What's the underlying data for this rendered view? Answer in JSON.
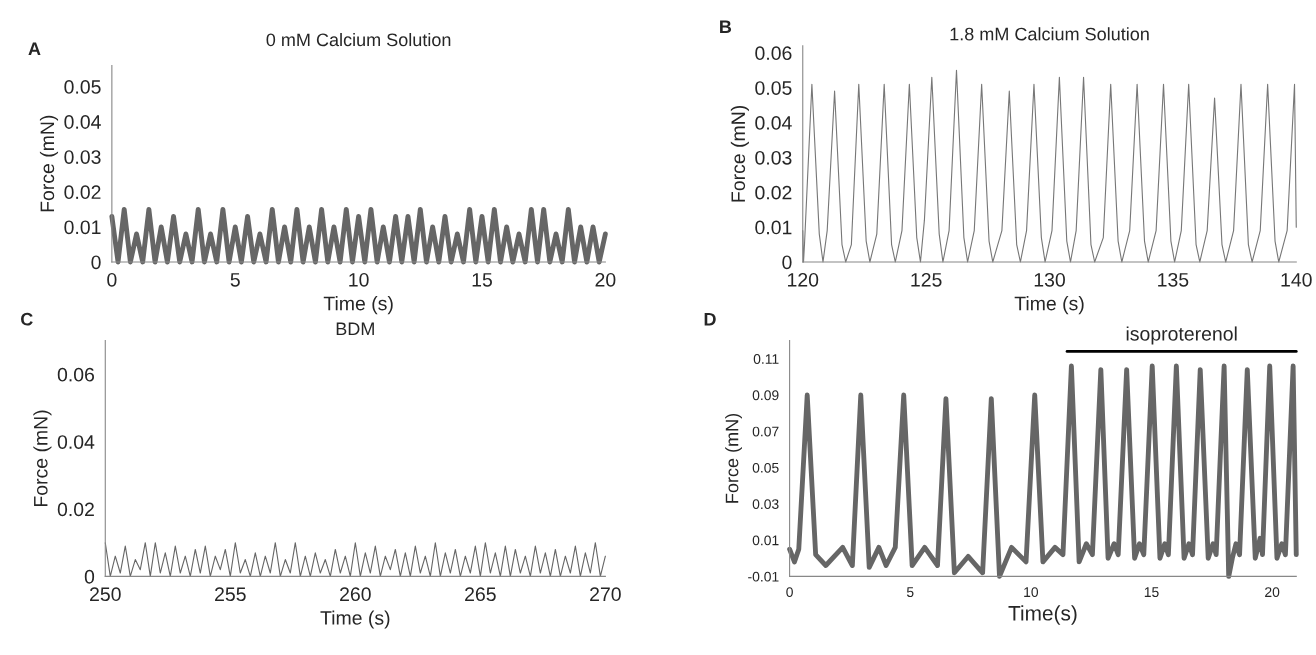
{
  "chart_data": [
    {
      "type": "line",
      "title": "0 mM Calcium Solution",
      "xlabel": "Time (s)",
      "ylabel": "Force (mN)",
      "annotations": [
        "A"
      ],
      "xlim": [
        0,
        20
      ],
      "xticks": [
        0,
        5,
        10,
        15,
        20
      ],
      "ylim": [
        0,
        0.056
      ],
      "yticks": [
        0,
        0.01,
        0.02,
        0.03,
        0.04,
        0.05
      ],
      "grid": false,
      "legend": false,
      "marker": "none",
      "line_style": "solid",
      "x": [
        0,
        0.25,
        0.5,
        0.75,
        1,
        1.25,
        1.5,
        1.75,
        2,
        2.25,
        2.5,
        2.75,
        3,
        3.25,
        3.5,
        3.75,
        4,
        4.25,
        4.5,
        4.75,
        5,
        5.25,
        5.5,
        5.75,
        6,
        6.25,
        6.5,
        6.75,
        7,
        7.25,
        7.5,
        7.75,
        8,
        8.25,
        8.5,
        8.75,
        9,
        9.25,
        9.5,
        9.75,
        10,
        10.25,
        10.5,
        10.75,
        11,
        11.25,
        11.5,
        11.75,
        12,
        12.25,
        12.5,
        12.75,
        13,
        13.25,
        13.5,
        13.75,
        14,
        14.25,
        14.5,
        14.75,
        15,
        15.25,
        15.5,
        15.75,
        16,
        16.25,
        16.5,
        16.75,
        17,
        17.25,
        17.5,
        17.75,
        18,
        18.25,
        18.5,
        18.75,
        19,
        19.25,
        19.5,
        19.75,
        20
      ],
      "series": [
        {
          "color": "#666666",
          "values": [
            0.013,
            0,
            0.015,
            0,
            0.008,
            0,
            0.015,
            0,
            0.01,
            0,
            0.013,
            0,
            0.008,
            0,
            0.015,
            0,
            0.008,
            0,
            0.015,
            0,
            0.01,
            0,
            0.013,
            0,
            0.008,
            0,
            0.015,
            0,
            0.01,
            0,
            0.015,
            0,
            0.01,
            0,
            0.015,
            0,
            0.01,
            0,
            0.015,
            0,
            0.013,
            0,
            0.015,
            0,
            0.01,
            0,
            0.013,
            0,
            0.013,
            0,
            0.015,
            0,
            0.01,
            0,
            0.013,
            0,
            0.008,
            0,
            0.015,
            0,
            0.013,
            0,
            0.015,
            0,
            0.01,
            0,
            0.008,
            0,
            0.015,
            0,
            0.015,
            0,
            0.008,
            0,
            0.015,
            0,
            0.01,
            0,
            0.01,
            0,
            0.008
          ]
        }
      ]
    },
    {
      "type": "line",
      "title": "1.8 mM Calcium Solution",
      "xlabel": "Time (s)",
      "ylabel": "Force (mN)",
      "annotations": [
        "B"
      ],
      "xlim": [
        120,
        140
      ],
      "xticks": [
        120,
        125,
        130,
        135,
        140
      ],
      "ylim": [
        0,
        0.062
      ],
      "yticks": [
        0,
        0.01,
        0.02,
        0.03,
        0.04,
        0.05,
        0.06
      ],
      "grid": false,
      "legend": false,
      "marker": "none",
      "line_style": "solid",
      "x": [
        120,
        120.03,
        120.07,
        120.37,
        120.67,
        120.82,
        120.99,
        121.29,
        121.59,
        121.74,
        121.97,
        122.27,
        122.57,
        122.72,
        123.0,
        123.3,
        123.6,
        123.75,
        124.02,
        124.32,
        124.62,
        124.77,
        124.93,
        125.23,
        125.53,
        125.68,
        125.93,
        126.23,
        126.53,
        126.68,
        126.95,
        127.25,
        127.55,
        127.7,
        128.07,
        128.37,
        128.67,
        128.82,
        129.07,
        129.37,
        129.67,
        129.82,
        130.1,
        130.4,
        130.7,
        130.85,
        131.08,
        131.38,
        131.68,
        131.83,
        132.18,
        132.48,
        132.78,
        132.93,
        133.25,
        133.55,
        133.85,
        134.0,
        134.32,
        134.62,
        134.92,
        135.07,
        135.34,
        135.64,
        135.94,
        136.09,
        136.39,
        136.69,
        136.99,
        137.14,
        137.46,
        137.76,
        138.06,
        138.21,
        138.54,
        138.84,
        139.14,
        139.29,
        139.63,
        139.93,
        140
      ],
      "series": [
        {
          "color": "#777777",
          "values": [
            0.009,
            0,
            0.005,
            0.051,
            0.008,
            0,
            0.009,
            0.049,
            0.005,
            0,
            0.005,
            0.051,
            0.006,
            0,
            0.008,
            0.051,
            0.005,
            0,
            0.009,
            0.051,
            0.007,
            0,
            0.012,
            0.053,
            0.008,
            0,
            0.009,
            0.055,
            0.007,
            0,
            0.009,
            0.051,
            0.006,
            0,
            0.009,
            0.049,
            0.005,
            0,
            0.009,
            0.051,
            0.007,
            0,
            0.009,
            0.053,
            0.006,
            0,
            0.009,
            0.053,
            0.005,
            0,
            0.007,
            0.051,
            0.006,
            0,
            0.009,
            0.051,
            0.006,
            0,
            0.009,
            0.051,
            0.006,
            0,
            0.009,
            0.051,
            0.005,
            0,
            0.009,
            0.047,
            0.005,
            0,
            0.009,
            0.051,
            0.005,
            0,
            0.009,
            0.051,
            0.006,
            0,
            0.009,
            0.051,
            0.01
          ]
        }
      ]
    },
    {
      "type": "line",
      "title": "BDM",
      "xlabel": "Time (s)",
      "ylabel": "Force (mN)",
      "annotations": [
        "C"
      ],
      "xlim": [
        250,
        270
      ],
      "xticks": [
        250,
        255,
        260,
        265,
        270
      ],
      "ylim": [
        0,
        0.07
      ],
      "yticks": [
        0,
        0.02,
        0.04,
        0.06
      ],
      "grid": false,
      "legend": false,
      "marker": "none",
      "line_style": "solid",
      "x": [
        250,
        250.2,
        250.4,
        250.6,
        250.8,
        251,
        251.2,
        251.4,
        251.6,
        251.8,
        252,
        252.2,
        252.4,
        252.6,
        252.8,
        253,
        253.2,
        253.4,
        253.6,
        253.8,
        254,
        254.2,
        254.4,
        254.6,
        254.8,
        255,
        255.2,
        255.4,
        255.6,
        255.8,
        256,
        256.2,
        256.4,
        256.6,
        256.8,
        257,
        257.2,
        257.4,
        257.6,
        257.8,
        258,
        258.2,
        258.4,
        258.6,
        258.8,
        259,
        259.2,
        259.4,
        259.6,
        259.8,
        260,
        260.2,
        260.4,
        260.6,
        260.8,
        261,
        261.2,
        261.4,
        261.6,
        261.8,
        262,
        262.2,
        262.4,
        262.6,
        262.8,
        263,
        263.2,
        263.4,
        263.6,
        263.8,
        264,
        264.2,
        264.4,
        264.6,
        264.8,
        265,
        265.2,
        265.4,
        265.6,
        265.8,
        266,
        266.2,
        266.4,
        266.6,
        266.8,
        267,
        267.2,
        267.4,
        267.6,
        267.8,
        268,
        268.2,
        268.4,
        268.6,
        268.8,
        269,
        269.2,
        269.4,
        269.6,
        269.8,
        270
      ],
      "series": [
        {
          "color": "#666666",
          "values": [
            0.01,
            0,
            0.006,
            0.001,
            0.009,
            0,
            0.005,
            0.002,
            0.01,
            0,
            0.01,
            0.001,
            0.007,
            0,
            0.009,
            0.001,
            0.006,
            0,
            0.008,
            0.001,
            0.009,
            0,
            0.006,
            0.002,
            0.008,
            0,
            0.01,
            0.001,
            0.005,
            0,
            0.007,
            0,
            0.006,
            0.001,
            0.01,
            0,
            0.005,
            0.001,
            0.01,
            0,
            0.006,
            0,
            0.007,
            0.001,
            0.005,
            0,
            0.008,
            0.001,
            0.006,
            0,
            0.01,
            0,
            0.007,
            0.001,
            0.009,
            0,
            0.006,
            0.002,
            0.008,
            0,
            0.007,
            0,
            0.009,
            0.001,
            0.006,
            0,
            0.01,
            0,
            0.007,
            0.001,
            0.008,
            0,
            0.006,
            0.001,
            0.009,
            0,
            0.01,
            0.001,
            0.007,
            0,
            0.009,
            0,
            0.008,
            0.001,
            0.006,
            0,
            0.009,
            0.001,
            0.007,
            0,
            0.008,
            0,
            0.006,
            0.001,
            0.009,
            0,
            0.007,
            0.001,
            0.01,
            0,
            0.006
          ]
        }
      ]
    },
    {
      "type": "line",
      "xlabel": "Time(s)",
      "ylabel": "Force (mN)",
      "annotations": [
        "D"
      ],
      "xlim": [
        0,
        21
      ],
      "xticks": [
        0,
        5,
        10,
        15,
        20
      ],
      "ylim": [
        -0.01,
        0.12
      ],
      "yticks": [
        -0.01,
        0.01,
        0.03,
        0.05,
        0.07,
        0.09,
        0.11
      ],
      "grid": false,
      "legend": false,
      "marker": "none",
      "line_style": "solid",
      "x": [
        0,
        0.2,
        0.38,
        0.73,
        1.08,
        1.5,
        2.2,
        2.6,
        2.95,
        3.3,
        3.7,
        4.0,
        4.38,
        4.73,
        5.08,
        5.6,
        6.13,
        6.48,
        6.83,
        7.4,
        8.0,
        8.36,
        8.7,
        9.2,
        9.8,
        10.16,
        10.5,
        11.0,
        11.33,
        11.68,
        12.0,
        12.3,
        12.55,
        12.9,
        13.2,
        13.45,
        13.62,
        13.97,
        14.3,
        14.5,
        14.68,
        15.03,
        15.35,
        15.55,
        15.7,
        16.03,
        16.35,
        16.55,
        16.7,
        17.02,
        17.35,
        17.55,
        17.68,
        18.01,
        18.2,
        18.35,
        18.5,
        18.65,
        18.97,
        19.3,
        19.5,
        19.6,
        19.9,
        20.2,
        20.4,
        20.55,
        20.87,
        21.0
      ],
      "series": [
        {
          "color": "#666666",
          "values": [
            0.005,
            -0.002,
            0.005,
            0.09,
            0.002,
            -0.004,
            0.006,
            -0.004,
            0.09,
            -0.005,
            0.006,
            -0.004,
            0.006,
            0.09,
            -0.004,
            0.006,
            -0.004,
            0.088,
            -0.008,
            0.001,
            -0.008,
            0.088,
            -0.01,
            0.006,
            -0.002,
            0.09,
            -0.002,
            0.006,
            0.002,
            0.106,
            -0.002,
            0.008,
            0.002,
            0.104,
            0.0,
            0.008,
            0.002,
            0.104,
            0.0,
            0.008,
            0.002,
            0.106,
            0.0,
            0.008,
            0.002,
            0.106,
            0.0,
            0.008,
            0.002,
            0.104,
            0.0,
            0.008,
            0.002,
            0.106,
            -0.01,
            0.0,
            0.008,
            0.002,
            0.104,
            0.0,
            0.011,
            0.002,
            0.106,
            0.0,
            0.008,
            0.002,
            0.106,
            0.002
          ]
        },
        {
          "type": "line",
          "name": "isoproterenol",
          "color": "#000000",
          "x": [
            11.5,
            21
          ],
          "values": [
            0.114,
            0.114
          ]
        }
      ]
    }
  ]
}
